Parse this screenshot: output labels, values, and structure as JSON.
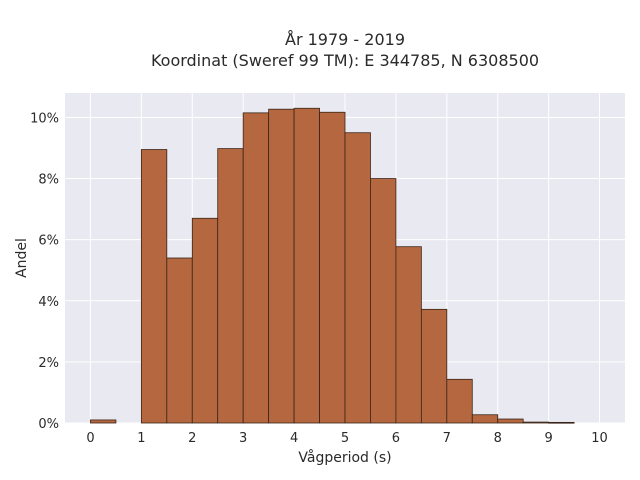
{
  "chart_data": {
    "type": "bar",
    "title_line1": "År 1979 - 2019",
    "title_line2": "Koordinat (Sweref 99 TM): E 344785, N 6308500",
    "xlabel": "Vågperiod (s)",
    "ylabel": "Andel",
    "xlim": [
      -0.5,
      10.5
    ],
    "ylim": [
      0,
      0.108
    ],
    "x_ticks": [
      "0",
      "1",
      "2",
      "3",
      "4",
      "5",
      "6",
      "7",
      "8",
      "9",
      "10"
    ],
    "y_ticks": [
      "0%",
      "2%",
      "4%",
      "6%",
      "8%",
      "10%"
    ],
    "bin_width": 0.5,
    "bin_starts": [
      0,
      0.5,
      1,
      1.5,
      2,
      2.5,
      3,
      3.5,
      4,
      4.5,
      5,
      5.5,
      6,
      6.5,
      7,
      7.5,
      8,
      8.5,
      9,
      9.5
    ],
    "values": [
      0.001,
      0,
      0.0895,
      0.054,
      0.067,
      0.0898,
      0.1015,
      0.1027,
      0.103,
      0.1017,
      0.095,
      0.08,
      0.0577,
      0.0372,
      0.0143,
      0.0027,
      0.0013,
      0.0003,
      0.0002,
      0
    ],
    "grid": true,
    "colors": {
      "bar_fill": "#b5683f",
      "bar_edge": "#3a2418",
      "plot_bg": "#e9e9f1",
      "grid": "#ffffff"
    }
  }
}
